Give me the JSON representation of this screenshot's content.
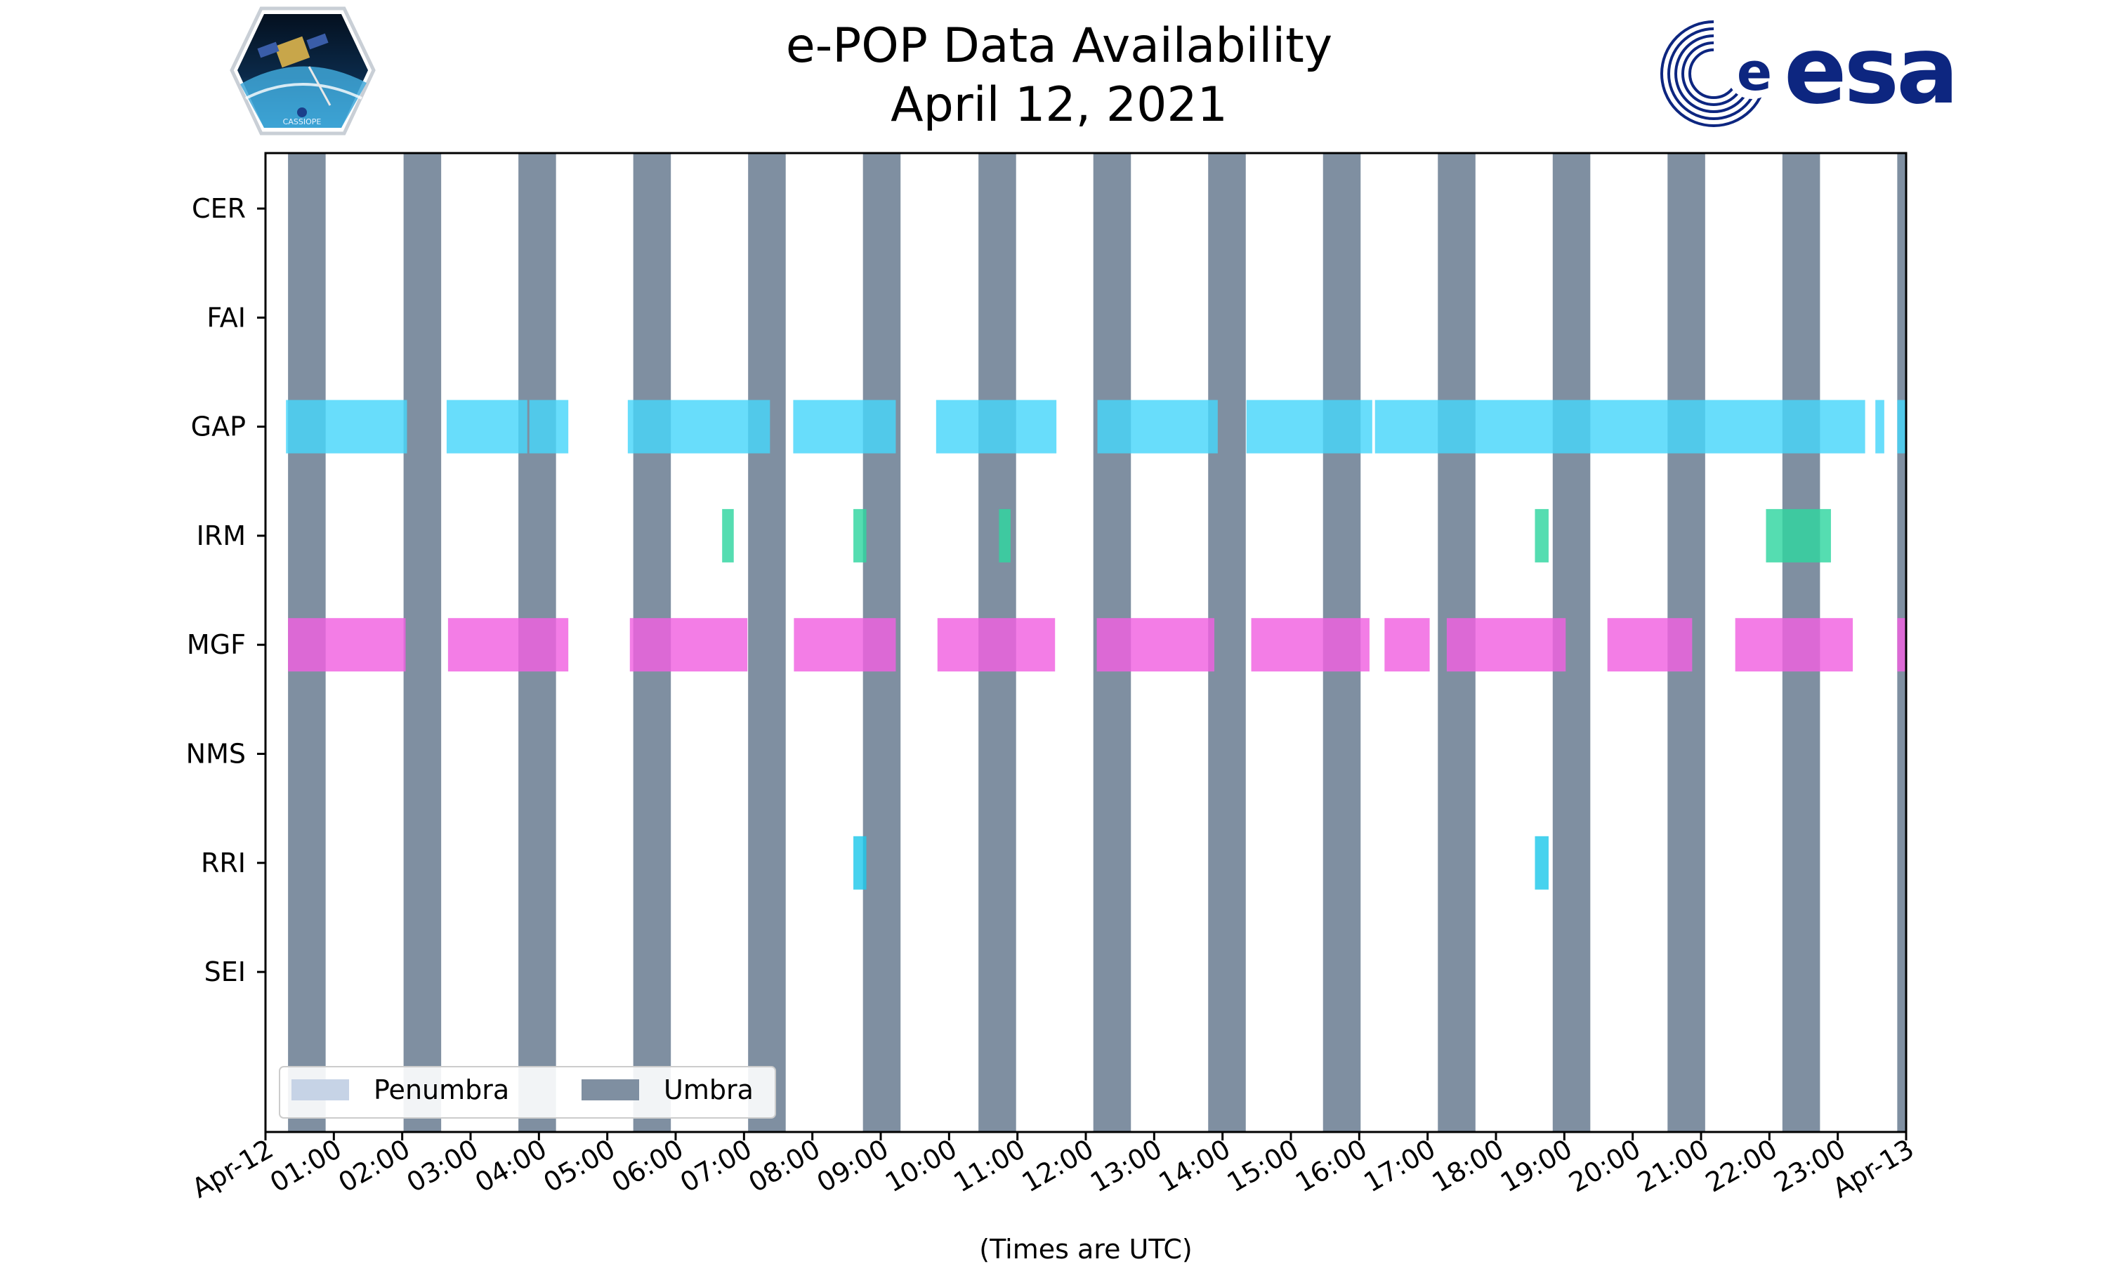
{
  "title_line1": "e-POP Data Availability",
  "title_line2": "April 12, 2021",
  "logos": {
    "left": {
      "icon": "cassiope-mission-patch-icon",
      "text": "CASSIOPE"
    },
    "right": {
      "icon": "esa-logo-icon",
      "text": "esa",
      "color": "#0d2680"
    }
  },
  "chart_data": {
    "type": "bar",
    "orientation": "horizontal-timeline",
    "title": "e-POP Data Availability\nApril 12, 2021",
    "xlabel": "(Times are UTC)",
    "x_range_hours": [
      0,
      24
    ],
    "x_tick_labels": [
      "Apr-12",
      "01:00",
      "02:00",
      "03:00",
      "04:00",
      "05:00",
      "06:00",
      "07:00",
      "08:00",
      "09:00",
      "10:00",
      "11:00",
      "12:00",
      "13:00",
      "14:00",
      "15:00",
      "16:00",
      "17:00",
      "18:00",
      "19:00",
      "20:00",
      "21:00",
      "22:00",
      "23:00",
      "Apr-13"
    ],
    "categories": [
      "CER",
      "FAI",
      "GAP",
      "IRM",
      "MGF",
      "NMS",
      "RRI",
      "SEI"
    ],
    "grid": false,
    "legend": {
      "placement": "lower-left",
      "entries": [
        {
          "name": "Penumbra",
          "color": "#c6d3e6"
        },
        {
          "name": "Umbra",
          "color": "#7f8fa1"
        }
      ]
    },
    "umbra_intervals_hours": [
      [
        0.33,
        0.88
      ],
      [
        2.02,
        2.57
      ],
      [
        3.7,
        4.25
      ],
      [
        5.38,
        5.93
      ],
      [
        7.06,
        7.61
      ],
      [
        8.74,
        9.29
      ],
      [
        10.43,
        10.98
      ],
      [
        12.11,
        12.66
      ],
      [
        13.79,
        14.34
      ],
      [
        15.47,
        16.02
      ],
      [
        17.15,
        17.7
      ],
      [
        18.83,
        19.38
      ],
      [
        20.51,
        21.06
      ],
      [
        22.19,
        22.74
      ],
      [
        23.87,
        24.0
      ]
    ],
    "series": [
      {
        "name": "CER",
        "color": "#47d6fa",
        "intervals_hours": []
      },
      {
        "name": "FAI",
        "color": "#47d6fa",
        "intervals_hours": []
      },
      {
        "name": "GAP",
        "color": "#47d6fa",
        "intervals_hours": [
          [
            0.3,
            2.07
          ],
          [
            2.65,
            3.83
          ],
          [
            3.86,
            4.43
          ],
          [
            5.3,
            7.38
          ],
          [
            7.72,
            9.22
          ],
          [
            9.81,
            11.57
          ],
          [
            12.17,
            13.93
          ],
          [
            14.35,
            16.19
          ],
          [
            16.23,
            23.4
          ],
          [
            23.55,
            23.68
          ],
          [
            23.87,
            24.0
          ]
        ]
      },
      {
        "name": "IRM",
        "color": "#2fd6a0",
        "intervals_hours": [
          [
            6.68,
            6.85
          ],
          [
            8.6,
            8.79
          ],
          [
            10.73,
            10.9
          ],
          [
            18.57,
            18.77
          ],
          [
            21.95,
            22.9
          ]
        ]
      },
      {
        "name": "MGF",
        "color": "#f060e0",
        "intervals_hours": [
          [
            0.33,
            2.05
          ],
          [
            2.67,
            4.43
          ],
          [
            5.33,
            7.05
          ],
          [
            7.73,
            9.22
          ],
          [
            9.83,
            11.55
          ],
          [
            12.16,
            13.88
          ],
          [
            14.42,
            16.15
          ],
          [
            16.37,
            17.03
          ],
          [
            17.28,
            19.02
          ],
          [
            19.63,
            20.87
          ],
          [
            21.5,
            23.22
          ],
          [
            23.87,
            24.0
          ]
        ]
      },
      {
        "name": "NMS",
        "color": "#47d6fa",
        "intervals_hours": []
      },
      {
        "name": "RRI",
        "color": "#1ec8ea",
        "intervals_hours": [
          [
            8.6,
            8.79
          ],
          [
            18.57,
            18.77
          ]
        ]
      },
      {
        "name": "SEI",
        "color": "#47d6fa",
        "intervals_hours": []
      }
    ]
  }
}
